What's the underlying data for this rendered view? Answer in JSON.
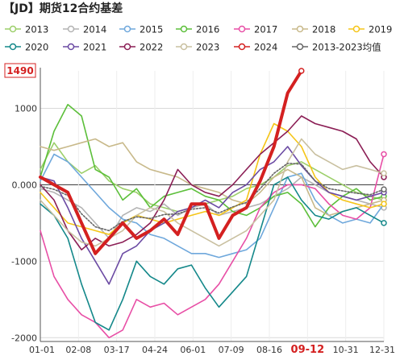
{
  "chart_data": {
    "type": "line",
    "title": "【JD】期货12合约基差",
    "x_ticks": [
      "01-01",
      "02-08",
      "03-17",
      "04-24",
      "06-01",
      "07-09",
      "08-16",
      "09-12",
      "10-31",
      "12-31"
    ],
    "highlight_x_label": "09-12",
    "ylim": [
      -2050,
      1490
    ],
    "y_ticks": [
      {
        "value": 1000,
        "label": "1000"
      },
      {
        "value": 0,
        "label": "0.000"
      },
      {
        "value": -1000,
        "label": "-1000"
      },
      {
        "value": -2000,
        "label": "-2000"
      }
    ],
    "max_marker": {
      "value": 1490,
      "label": "1490"
    },
    "grid": true,
    "legend_position": "top",
    "series": [
      {
        "name": "2013",
        "color": "#9ccf6a",
        "values": [
          200,
          550,
          300,
          150,
          250,
          50,
          -50,
          -100,
          -250,
          -300,
          -350,
          -300,
          -250,
          -200,
          -150,
          -50,
          0,
          100,
          250,
          300,
          200,
          100,
          0,
          -100,
          -150,
          -200
        ]
      },
      {
        "name": "2014",
        "color": "#b3b3b3",
        "values": [
          -50,
          -100,
          -200,
          -300,
          -500,
          -700,
          -400,
          -300,
          -350,
          -250,
          -400,
          -300,
          -250,
          -400,
          -350,
          -300,
          -250,
          -150,
          -50,
          100,
          0,
          -100,
          -150,
          -200,
          -250,
          -300
        ]
      },
      {
        "name": "2015",
        "color": "#6fa8dc",
        "values": [
          50,
          400,
          300,
          100,
          -100,
          -300,
          -450,
          -500,
          -650,
          -700,
          -800,
          -900,
          -900,
          -950,
          -900,
          -850,
          -700,
          -300,
          100,
          150,
          -200,
          -400,
          -500,
          -450,
          -500,
          -250
        ]
      },
      {
        "name": "2016",
        "color": "#5cbf3a",
        "values": [
          100,
          700,
          1050,
          900,
          200,
          100,
          -200,
          -50,
          -300,
          -150,
          -100,
          -50,
          -150,
          -200,
          -350,
          -400,
          -300,
          -150,
          -100,
          -250,
          -550,
          -300,
          -150,
          -50,
          -200,
          -150
        ]
      },
      {
        "name": "2017",
        "color": "#e84fa6",
        "values": [
          -600,
          -1200,
          -1500,
          -1700,
          -1800,
          -2000,
          -1900,
          -1500,
          -1600,
          -1550,
          -1700,
          -1600,
          -1500,
          -1300,
          -1000,
          -700,
          -300,
          -100,
          0,
          0,
          -50,
          -250,
          -400,
          -450,
          -300,
          400
        ]
      },
      {
        "name": "2018",
        "color": "#c8b98a",
        "values": [
          500,
          450,
          500,
          550,
          600,
          500,
          550,
          300,
          200,
          150,
          100,
          0,
          -50,
          -100,
          -200,
          -250,
          -100,
          100,
          200,
          100,
          -300,
          -400,
          -350,
          -300,
          -250,
          -200
        ]
      },
      {
        "name": "2019",
        "color": "#f5c518",
        "values": [
          -100,
          -300,
          -500,
          -550,
          -600,
          -650,
          -500,
          -400,
          -450,
          -500,
          -450,
          -400,
          -350,
          -400,
          -300,
          -200,
          400,
          800,
          700,
          500,
          100,
          -100,
          -200,
          -250,
          -300,
          -250
        ]
      },
      {
        "name": "2020",
        "color": "#14888a",
        "values": [
          -250,
          -400,
          -700,
          -1300,
          -1800,
          -1900,
          -1500,
          -1000,
          -1200,
          -1300,
          -1100,
          -1050,
          -1350,
          -1600,
          -1400,
          -1200,
          -600,
          0,
          100,
          -200,
          -400,
          -450,
          -350,
          -300,
          -400,
          -500
        ]
      },
      {
        "name": "2021",
        "color": "#6b4aa3",
        "values": [
          100,
          50,
          -300,
          -700,
          -1000,
          -1300,
          -900,
          -800,
          -600,
          -500,
          -350,
          -300,
          -200,
          -300,
          -100,
          0,
          200,
          300,
          500,
          250,
          50,
          -100,
          -150,
          -200,
          -150,
          -100
        ]
      },
      {
        "name": "2022",
        "color": "#8b1e55",
        "values": [
          0,
          -200,
          -600,
          -850,
          -700,
          -800,
          -750,
          -650,
          -500,
          -200,
          200,
          0,
          -100,
          -150,
          0,
          200,
          400,
          550,
          700,
          900,
          800,
          750,
          700,
          600,
          300,
          100
        ]
      },
      {
        "name": "2023",
        "color": "#c9c0a0",
        "values": [
          -200,
          -400,
          -600,
          -750,
          -800,
          -700,
          -600,
          -400,
          -300,
          -350,
          -500,
          -600,
          -700,
          -800,
          -700,
          -600,
          -400,
          -200,
          300,
          600,
          400,
          300,
          200,
          250,
          200,
          150
        ]
      },
      {
        "name": "2024",
        "color": "#d42020",
        "values": [
          100,
          0,
          -100,
          -500,
          -900,
          -700,
          -500,
          -700,
          -600,
          -450,
          -650,
          -250,
          -250,
          -700,
          -400,
          -300,
          50,
          500,
          1200,
          1490
        ]
      },
      {
        "name": "2013-2023均值",
        "color": "#666666",
        "values": [
          -20,
          -60,
          -140,
          -380,
          -550,
          -600,
          -480,
          -420,
          -440,
          -390,
          -380,
          -320,
          -300,
          -370,
          -290,
          -230,
          -50,
          150,
          280,
          270,
          50,
          -50,
          -80,
          -110,
          -130,
          -60
        ]
      }
    ]
  }
}
